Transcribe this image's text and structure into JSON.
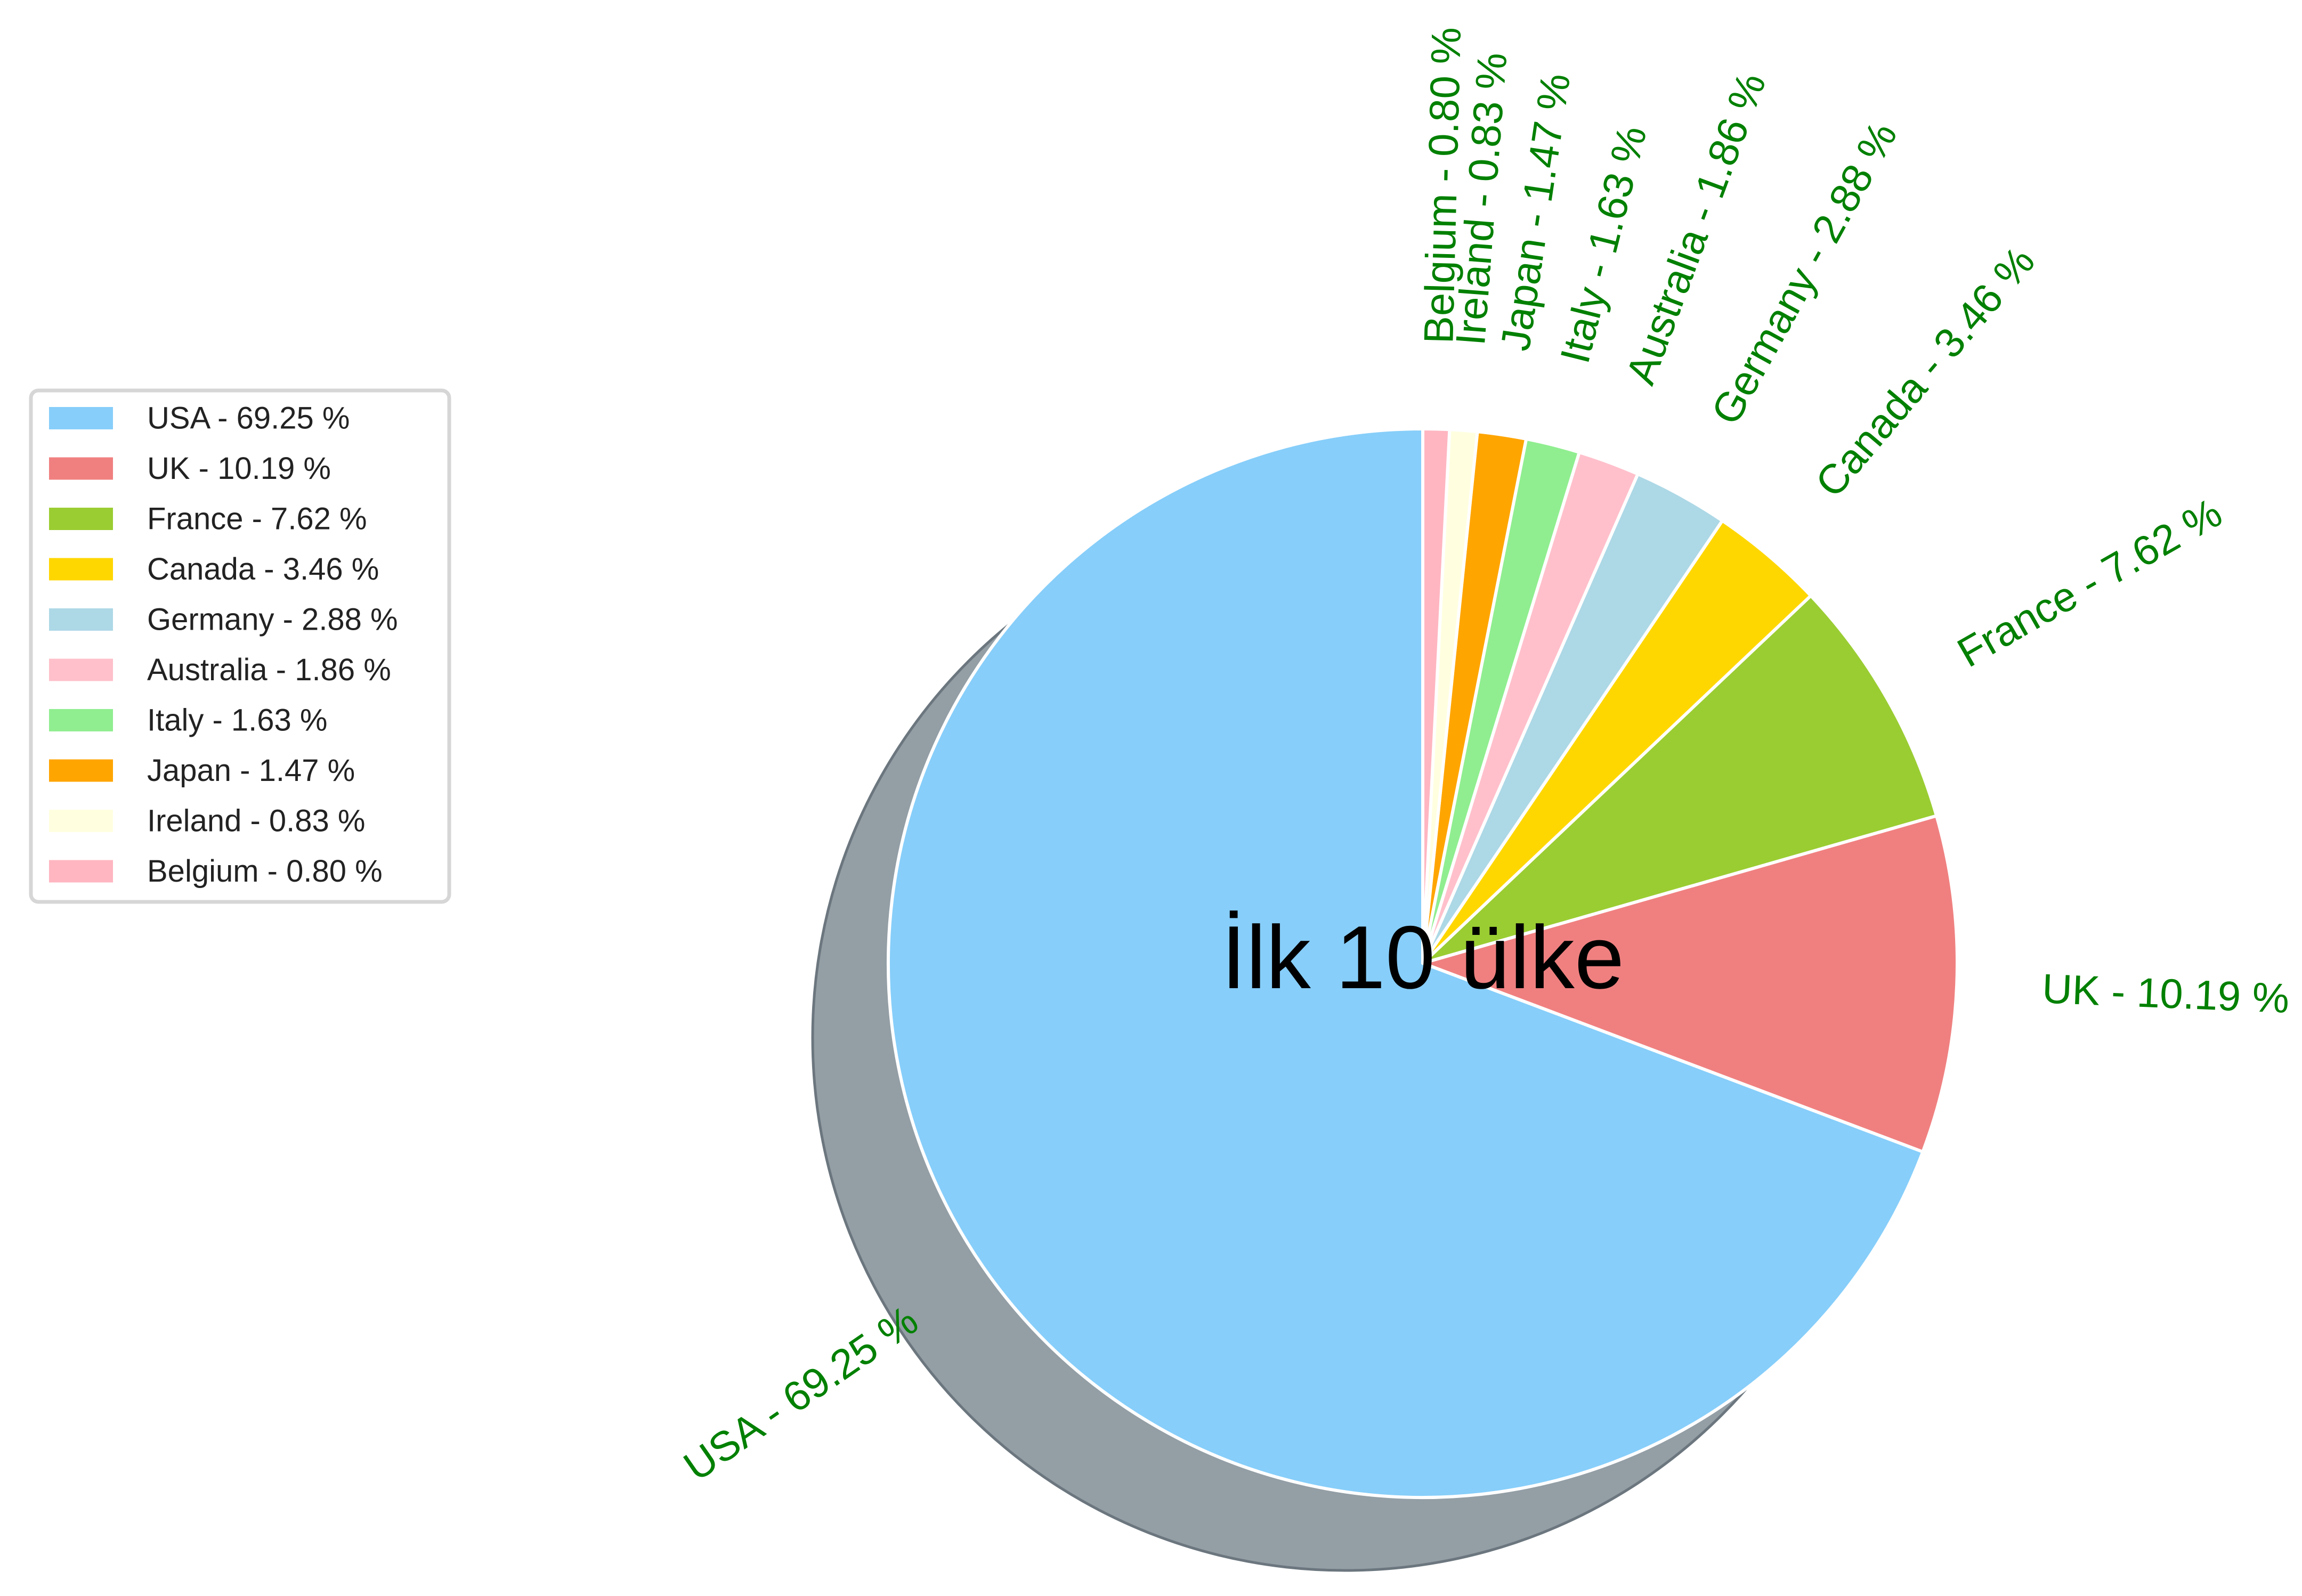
{
  "chart_data": {
    "type": "pie",
    "title": "İlk 10 ülke",
    "start_angle_deg": 90,
    "direction": "counterclockwise",
    "shadow": true,
    "legend_placement": "left",
    "label_color": "#008000",
    "slices": [
      {
        "name": "USA",
        "value": 69.25,
        "label": "USA - 69.25 %",
        "color": "#87cefa"
      },
      {
        "name": "UK",
        "value": 10.19,
        "label": "UK - 10.19 %",
        "color": "#f08080"
      },
      {
        "name": "France",
        "value": 7.62,
        "label": "France - 7.62 %",
        "color": "#9acd32"
      },
      {
        "name": "Canada",
        "value": 3.46,
        "label": "Canada - 3.46 %",
        "color": "#ffd700"
      },
      {
        "name": "Germany",
        "value": 2.88,
        "label": "Germany - 2.88 %",
        "color": "#add8e6"
      },
      {
        "name": "Australia",
        "value": 1.86,
        "label": "Australia - 1.86 %",
        "color": "#ffc0cb"
      },
      {
        "name": "Italy",
        "value": 1.63,
        "label": "Italy - 1.63 %",
        "color": "#90ee90"
      },
      {
        "name": "Japan",
        "value": 1.47,
        "label": "Japan - 1.47 %",
        "color": "#ffa500"
      },
      {
        "name": "Ireland",
        "value": 0.83,
        "label": "Ireland - 0.83 %",
        "color": "#ffffe0"
      },
      {
        "name": "Belgium",
        "value": 0.8,
        "label": "Belgium - 0.80 %",
        "color": "#ffb6c1"
      }
    ]
  }
}
